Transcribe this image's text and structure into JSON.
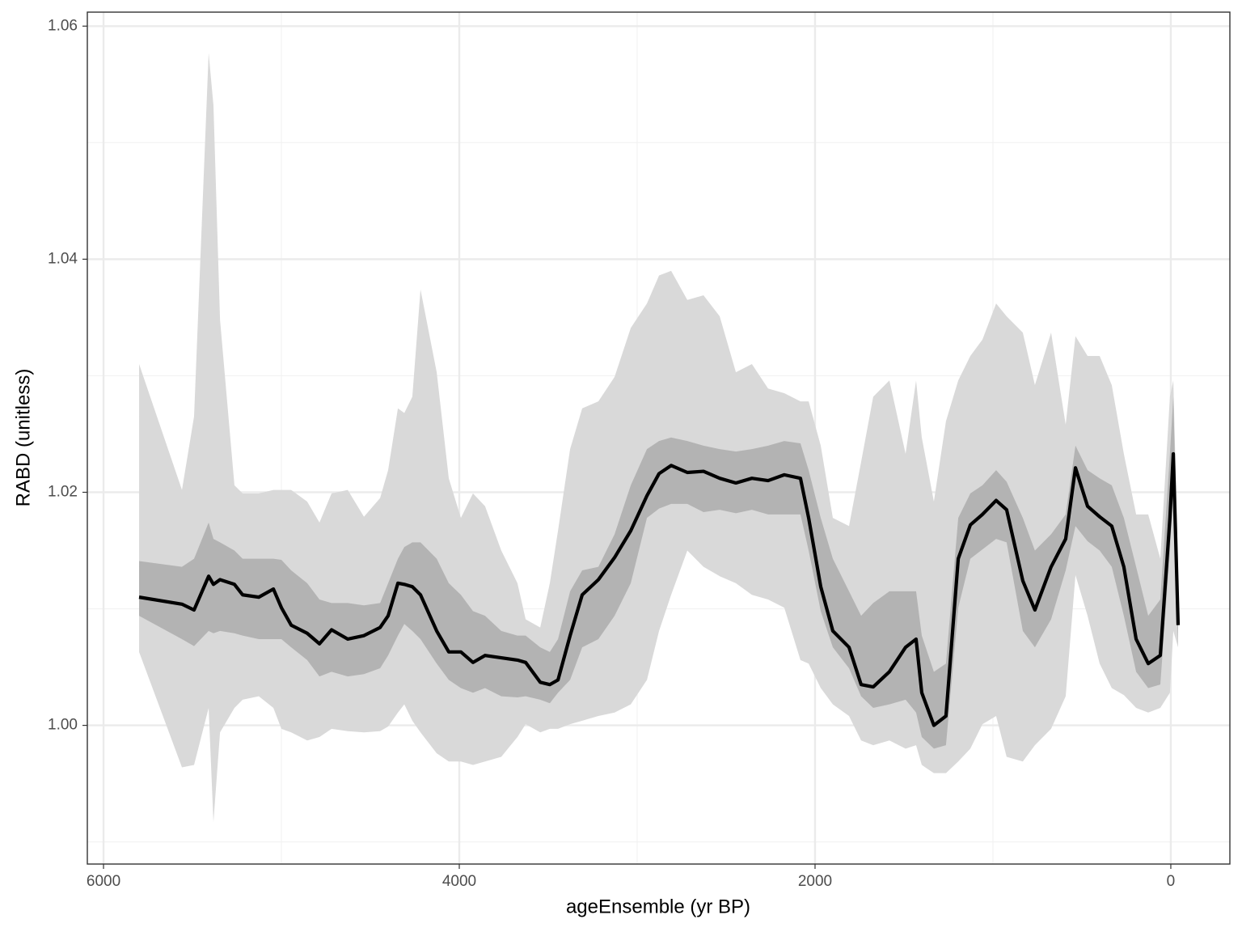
{
  "chart_data": {
    "type": "line",
    "x_label": "ageEnsemble (yr BP)",
    "y_label": "RABD (unitless)",
    "x": [
      5800,
      5559,
      5491,
      5409,
      5382,
      5345,
      5264,
      5218,
      5127,
      5045,
      5000,
      4945,
      4855,
      4786,
      4718,
      4627,
      4536,
      4445,
      4400,
      4345,
      4309,
      4264,
      4218,
      4127,
      4059,
      3991,
      3923,
      3855,
      3764,
      3673,
      3627,
      3545,
      3491,
      3445,
      3377,
      3309,
      3218,
      3127,
      3036,
      2945,
      2877,
      2809,
      2718,
      2627,
      2536,
      2445,
      2355,
      2264,
      2173,
      2082,
      2036,
      1968,
      1900,
      1809,
      1741,
      1673,
      1582,
      1491,
      1432,
      1400,
      1332,
      1264,
      1195,
      1127,
      1059,
      982,
      923,
      832,
      764,
      673,
      591,
      536,
      468,
      400,
      332,
      264,
      195,
      127,
      59,
      5,
      -14,
      -41
    ],
    "series": [
      {
        "color": "#000000",
        "values": [
          1.011,
          1.0104,
          1.0099,
          1.0128,
          1.0121,
          1.0125,
          1.0121,
          1.0112,
          1.011,
          1.0117,
          1.0101,
          1.0086,
          1.0079,
          1.007,
          1.0082,
          1.0074,
          1.0077,
          1.0084,
          1.0094,
          1.0122,
          1.0121,
          1.0119,
          1.0112,
          1.0081,
          1.0063,
          1.0063,
          1.0054,
          1.006,
          1.0058,
          1.0056,
          1.0054,
          1.0037,
          1.0035,
          1.0039,
          1.0077,
          1.0112,
          1.0125,
          1.0144,
          1.0167,
          1.0197,
          1.0216,
          1.0223,
          1.0217,
          1.0218,
          1.0212,
          1.0208,
          1.0212,
          1.021,
          1.0215,
          1.0212,
          1.0178,
          1.0119,
          1.0081,
          1.0067,
          1.0035,
          1.0033,
          1.0046,
          1.0067,
          1.0074,
          1.0028,
          1.0,
          1.0008,
          1.0143,
          1.0172,
          1.0181,
          1.0193,
          1.0185,
          1.0124,
          1.0099,
          1.0136,
          1.016,
          1.0221,
          1.0188,
          1.0179,
          1.0171,
          1.0136,
          1.0074,
          1.0053,
          1.006,
          1.0178,
          1.0233,
          1.0086
        ]
      }
    ],
    "bands": [
      {
        "color": "#d9d9d9",
        "upper": [
          1.031,
          1.0202,
          1.0265,
          1.0577,
          1.0532,
          1.0348,
          1.0206,
          1.0199,
          1.0199,
          1.0202,
          1.0202,
          1.0202,
          1.0192,
          1.0174,
          1.0199,
          1.0202,
          1.0179,
          1.0195,
          1.0219,
          1.0272,
          1.0268,
          1.0282,
          1.0374,
          1.0303,
          1.0212,
          1.0178,
          1.0199,
          1.0188,
          1.015,
          1.0122,
          1.0091,
          1.0084,
          1.0122,
          1.0167,
          1.0237,
          1.0272,
          1.0278,
          1.0299,
          1.0341,
          1.0362,
          1.0386,
          1.039,
          1.0365,
          1.0369,
          1.0351,
          1.0303,
          1.031,
          1.0289,
          1.0285,
          1.0278,
          1.0278,
          1.024,
          1.0178,
          1.0171,
          1.0226,
          1.0282,
          1.0296,
          1.0233,
          1.0296,
          1.0247,
          1.0192,
          1.0261,
          1.0296,
          1.0317,
          1.0331,
          1.0362,
          1.0351,
          1.0337,
          1.0292,
          1.0337,
          1.0258,
          1.0334,
          1.0317,
          1.0317,
          1.0292,
          1.0233,
          1.0181,
          1.0181,
          1.0143,
          1.0282,
          1.0296,
          1.0136
        ],
        "lower": [
          1.0063,
          0.9964,
          0.9966,
          1.0015,
          0.9917,
          0.9994,
          1.0015,
          1.0022,
          1.0025,
          1.0015,
          0.9997,
          0.9994,
          0.9987,
          0.999,
          0.9997,
          0.9995,
          0.9994,
          0.9995,
          0.9999,
          1.0011,
          1.0018,
          1.0004,
          0.9994,
          0.9976,
          0.9969,
          0.9969,
          0.9966,
          0.9969,
          0.9973,
          0.999,
          1.0001,
          0.9994,
          0.9997,
          0.9997,
          1.0001,
          1.0004,
          1.0008,
          1.0011,
          1.0018,
          1.0039,
          1.0081,
          1.0112,
          1.015,
          1.0136,
          1.0128,
          1.0122,
          1.0112,
          1.0108,
          1.0101,
          1.0056,
          1.0053,
          1.0032,
          1.0018,
          1.0008,
          0.9987,
          0.9983,
          0.9987,
          0.998,
          0.9983,
          0.9966,
          0.9959,
          0.9959,
          0.9969,
          0.998,
          1.0001,
          1.0008,
          0.9973,
          0.9969,
          0.9983,
          0.9997,
          1.0025,
          1.0129,
          1.0094,
          1.0053,
          1.0032,
          1.0026,
          1.0015,
          1.0011,
          1.0015,
          1.0028,
          1.0081,
          1.0067
        ]
      },
      {
        "color": "#b3b3b3",
        "upper": [
          1.0141,
          1.0136,
          1.0143,
          1.0174,
          1.016,
          1.0157,
          1.015,
          1.0143,
          1.0143,
          1.0143,
          1.0142,
          1.0133,
          1.0122,
          1.0108,
          1.0105,
          1.0105,
          1.0103,
          1.0105,
          1.0122,
          1.0143,
          1.0153,
          1.0157,
          1.0157,
          1.0143,
          1.0122,
          1.0112,
          1.0098,
          1.0094,
          1.0081,
          1.0077,
          1.0077,
          1.0067,
          1.0063,
          1.0074,
          1.0115,
          1.0133,
          1.0136,
          1.0164,
          1.0206,
          1.0237,
          1.0244,
          1.0247,
          1.0244,
          1.024,
          1.0237,
          1.0235,
          1.0237,
          1.024,
          1.0244,
          1.0242,
          1.0219,
          1.0178,
          1.0143,
          1.0115,
          1.0094,
          1.0105,
          1.0115,
          1.0115,
          1.0115,
          1.0077,
          1.0046,
          1.0053,
          1.0178,
          1.0199,
          1.0206,
          1.0219,
          1.0209,
          1.0178,
          1.015,
          1.0164,
          1.0181,
          1.024,
          1.0219,
          1.0212,
          1.0206,
          1.0178,
          1.0136,
          1.0094,
          1.0108,
          1.0233,
          1.0282,
          1.0122
        ],
        "lower": [
          1.0094,
          1.0074,
          1.0068,
          1.0081,
          1.0079,
          1.0081,
          1.0079,
          1.0077,
          1.0074,
          1.0074,
          1.0074,
          1.0067,
          1.0056,
          1.0042,
          1.0046,
          1.0042,
          1.0044,
          1.0049,
          1.006,
          1.0077,
          1.0087,
          1.0081,
          1.0074,
          1.0053,
          1.0039,
          1.0032,
          1.0028,
          1.0032,
          1.0025,
          1.0024,
          1.0025,
          1.0022,
          1.0019,
          1.0028,
          1.0039,
          1.0067,
          1.0074,
          1.0094,
          1.0122,
          1.0178,
          1.0186,
          1.019,
          1.019,
          1.0183,
          1.0185,
          1.0182,
          1.0185,
          1.0181,
          1.0181,
          1.0181,
          1.015,
          1.0098,
          1.0067,
          1.0049,
          1.0025,
          1.0015,
          1.0018,
          1.0022,
          1.0011,
          0.999,
          0.998,
          0.9983,
          1.0101,
          1.0143,
          1.0151,
          1.016,
          1.0157,
          1.0081,
          1.0067,
          1.0091,
          1.0133,
          1.0171,
          1.0158,
          1.015,
          1.0136,
          1.0094,
          1.0046,
          1.0032,
          1.0035,
          1.015,
          1.0199,
          1.0067
        ]
      }
    ],
    "xlim": [
      6091,
      -332
    ],
    "xticks": [
      6000,
      4000,
      2000,
      0
    ],
    "ylim": [
      0.9881,
      1.0612
    ],
    "yticks": [
      {
        "value": 1.0,
        "label": "1.00"
      },
      {
        "value": 1.02,
        "label": "1.02"
      },
      {
        "value": 1.04,
        "label": "1.04"
      },
      {
        "value": 1.06,
        "label": "1.06"
      }
    ],
    "grid": true
  }
}
